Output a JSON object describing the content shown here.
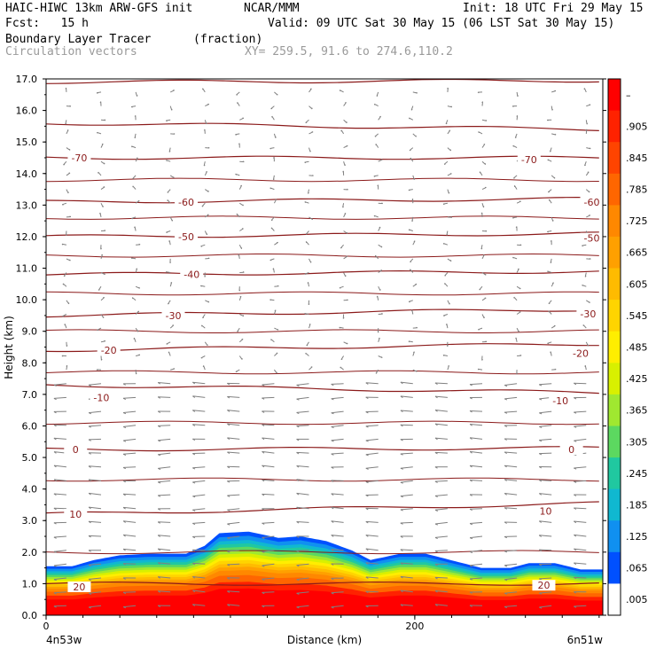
{
  "header": {
    "model": "HAIC-HIWC 13km ARW-GFS init",
    "org": "NCAR/MMM",
    "init": "Init: 18 UTC Fri 29 May 15",
    "fcst": "Fcst:   15 h",
    "valid": "Valid: 09 UTC Sat 30 May 15 (06 LST Sat 30 May 15)",
    "field": "Boundary Layer Tracer",
    "units": "(fraction)",
    "vectors": "Circulation vectors",
    "xy": "XY= 259.5, 91.6 to 274.6,110.2"
  },
  "chart_data": {
    "type": "heatmap",
    "xlabel": "Distance (km)",
    "ylabel": "Height (km)",
    "xlim": [
      0,
      302
    ],
    "ylim": [
      0,
      17
    ],
    "x_ticks": [
      "0",
      "200"
    ],
    "y_ticks": [
      "0.0",
      "1.0",
      "2.0",
      "3.0",
      "4.0",
      "5.0",
      "6.0",
      "7.0",
      "8.0",
      "9.0",
      "10.0",
      "11.0",
      "12.0",
      "13.0",
      "14.0",
      "15.0",
      "16.0",
      "17.0"
    ],
    "x_end_labels": {
      "left": "4n53w",
      "right": "6n51w"
    },
    "tracer_top_km": [
      [
        0,
        1.55
      ],
      [
        14,
        1.55
      ],
      [
        26,
        1.75
      ],
      [
        40,
        1.9
      ],
      [
        56,
        1.95
      ],
      [
        76,
        1.95
      ],
      [
        86,
        2.2
      ],
      [
        94,
        2.6
      ],
      [
        110,
        2.65
      ],
      [
        126,
        2.45
      ],
      [
        138,
        2.5
      ],
      [
        152,
        2.35
      ],
      [
        166,
        2.05
      ],
      [
        176,
        1.75
      ],
      [
        192,
        1.95
      ],
      [
        206,
        1.95
      ],
      [
        216,
        1.8
      ],
      [
        236,
        1.5
      ],
      [
        252,
        1.5
      ],
      [
        262,
        1.65
      ],
      [
        276,
        1.65
      ],
      [
        290,
        1.45
      ],
      [
        302,
        1.45
      ]
    ],
    "temperature_contours": [
      {
        "label": "20",
        "left_km": 1.0,
        "right_km": 1.0,
        "label_positions_km": [
          [
            18,
            0.9
          ],
          [
            270,
            0.95
          ]
        ]
      },
      {
        "label": "10",
        "left_km": 3.2,
        "right_km": 3.55,
        "label_positions_km": [
          [
            16,
            3.2
          ],
          [
            271,
            3.3
          ]
        ]
      },
      {
        "label": "0",
        "left_km": 5.25,
        "right_km": 5.3,
        "label_positions_km": [
          [
            16,
            5.25
          ],
          [
            285,
            5.25
          ]
        ]
      },
      {
        "label": "-10",
        "left_km": 7.3,
        "right_km": 7.05,
        "label_positions_km": [
          [
            30,
            6.9
          ],
          [
            279,
            6.8
          ]
        ]
      },
      {
        "label": "-20",
        "left_km": 8.4,
        "right_km": 8.6,
        "label_positions_km": [
          [
            34,
            8.4
          ],
          [
            290,
            8.3
          ]
        ]
      },
      {
        "label": "-30",
        "left_km": 9.5,
        "right_km": 9.7,
        "label_positions_km": [
          [
            69,
            9.5
          ],
          [
            294,
            9.55
          ]
        ]
      },
      {
        "label": "-40",
        "left_km": 10.8,
        "right_km": 10.9,
        "label_positions_km": [
          [
            79,
            10.8
          ]
        ]
      },
      {
        "label": "-50",
        "left_km": 12.0,
        "right_km": 12.1,
        "label_positions_km": [
          [
            76,
            12.0
          ],
          [
            296,
            11.95
          ]
        ]
      },
      {
        "label": "-60",
        "left_km": 13.1,
        "right_km": 13.2,
        "label_positions_km": [
          [
            76,
            13.1
          ],
          [
            296,
            13.1
          ]
        ]
      },
      {
        "label": "-70",
        "left_km": 14.5,
        "right_km": 14.5,
        "label_positions_km": [
          [
            18,
            14.5
          ],
          [
            262,
            14.45
          ]
        ]
      },
      {
        "label": "",
        "left_km": 15.6,
        "right_km": 15.4,
        "label_positions_km": []
      },
      {
        "label": "",
        "left_km": 16.9,
        "right_km": 16.95,
        "label_positions_km": []
      }
    ],
    "extra_isotherms_km": [
      2.0,
      4.3,
      6.1,
      7.7,
      9.0,
      10.2,
      11.4,
      12.6,
      13.8
    ],
    "colorbar": {
      "labels": [
        "–",
        ".905",
        ".845",
        ".785",
        ".725",
        ".665",
        ".605",
        ".545",
        ".485",
        ".425",
        ".365",
        ".305",
        ".245",
        ".185",
        ".125",
        ".065",
        ".005"
      ],
      "colors": [
        "#ff0000",
        "#ff2200",
        "#ff4400",
        "#ff6600",
        "#ff8800",
        "#ffa000",
        "#ffbb00",
        "#ffd400",
        "#ffee00",
        "#d8f000",
        "#a0e830",
        "#5cd860",
        "#20c8a0",
        "#10b8d0",
        "#1090f0",
        "#0050ff",
        "#ffffff"
      ]
    }
  }
}
